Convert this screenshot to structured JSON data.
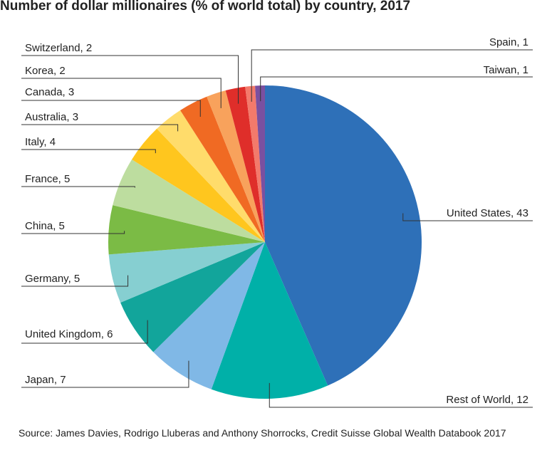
{
  "chart_data": {
    "type": "pie",
    "title": "Number of dollar millionaires (% of world total) by country, 2017",
    "source": "Source: James Davies, Rodrigo Lluberas and Anthony Shorrocks, Credit Suisse Global Wealth Databook 2017",
    "categories": [
      "United States, 43",
      "Rest of World, 12",
      "Japan, 7",
      "United Kingdom, 6",
      "Germany, 5",
      "China, 5",
      "France, 5",
      "Italy, 4",
      "Australia, 3",
      "Canada, 3",
      "Korea, 2",
      "Switzerland, 2",
      "Spain, 1",
      "Taiwan, 1"
    ],
    "values": [
      43,
      12,
      7,
      6,
      5,
      5,
      5,
      4,
      3,
      3,
      2,
      2,
      1,
      1
    ],
    "colors": [
      "#2e70b8",
      "#00b0a8",
      "#80b8e6",
      "#12a59b",
      "#86cfd1",
      "#7bbb45",
      "#bddd9f",
      "#ffc61e",
      "#ffdc6b",
      "#f06a23",
      "#f8a25c",
      "#df2e2a",
      "#f37a6b",
      "#7a50a0"
    ]
  }
}
